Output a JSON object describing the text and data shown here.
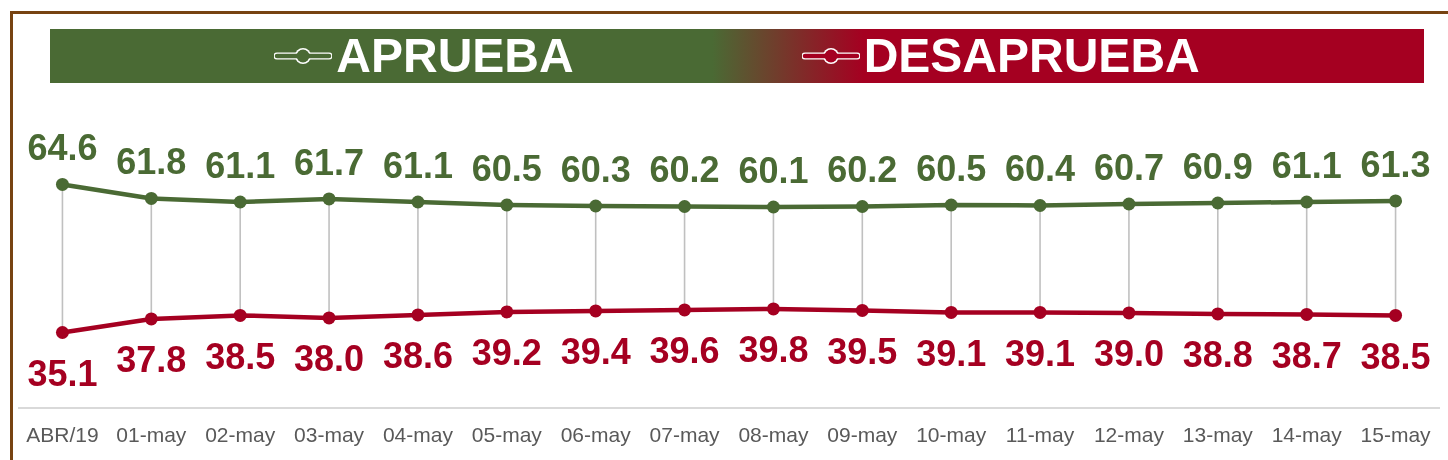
{
  "chart_data": {
    "type": "line",
    "categories": [
      "ABR/19",
      "01-may",
      "02-may",
      "03-may",
      "04-may",
      "05-may",
      "06-may",
      "07-may",
      "08-may",
      "09-may",
      "10-may",
      "11-may",
      "12-may",
      "13-may",
      "14-may",
      "15-may"
    ],
    "series": [
      {
        "name": "APRUEBA",
        "color": "#4a6a34",
        "values": [
          64.6,
          61.8,
          61.1,
          61.7,
          61.1,
          60.5,
          60.3,
          60.2,
          60.1,
          60.2,
          60.5,
          60.4,
          60.7,
          60.9,
          61.1,
          61.3
        ],
        "value_labels": [
          "64.6",
          "61.8",
          "61.1",
          "61.7",
          "61.1",
          "60.5",
          "60.3",
          "60.2",
          "60.1",
          "60.2",
          "60.5",
          "60.4",
          "60.7",
          "60.9",
          "61.1",
          "61.3"
        ]
      },
      {
        "name": "DESAPRUEBA",
        "color": "#a50021",
        "values": [
          35.1,
          37.8,
          38.5,
          38.0,
          38.6,
          39.2,
          39.4,
          39.6,
          39.8,
          39.5,
          39.1,
          39.1,
          39.0,
          38.8,
          38.7,
          38.5
        ],
        "value_labels": [
          "35.1",
          "37.8",
          "38.5",
          "38.0",
          "38.6",
          "39.2",
          "39.4",
          "39.6",
          "39.8",
          "39.5",
          "39.1",
          "39.1",
          "39.0",
          "38.8",
          "38.7",
          "38.5"
        ]
      }
    ],
    "grid": "x",
    "legend": "top",
    "marker": "circle",
    "line_style": "solid",
    "tick_labels": "x"
  }
}
